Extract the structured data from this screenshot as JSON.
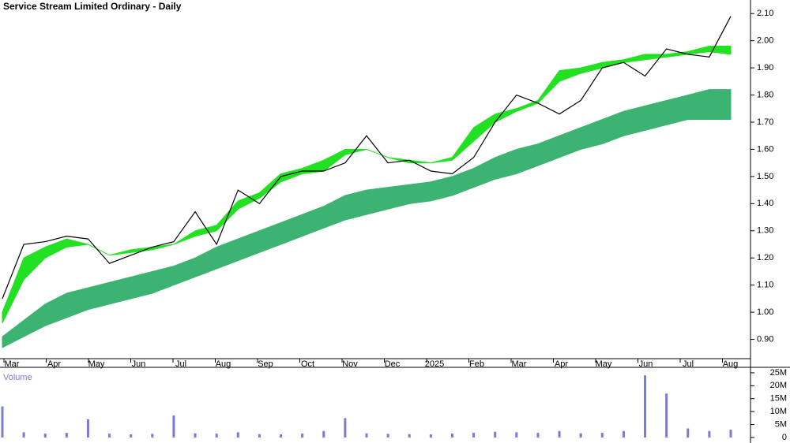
{
  "chart_data": {
    "type": "line",
    "title": "Service Stream Limited Ordinary - Daily",
    "categories": [
      "Mar",
      "Apr",
      "May",
      "Jun",
      "Jul",
      "Aug",
      "Sep",
      "Oct",
      "Nov",
      "Dec",
      "2025",
      "Feb",
      "Mar",
      "Apr",
      "May",
      "Jun",
      "Jul",
      "Aug"
    ],
    "ylim": [
      0.8,
      2.15
    ],
    "yticks": [
      {
        "value": 0.9,
        "label": "0.90"
      },
      {
        "value": 1.0,
        "label": "1.00"
      },
      {
        "value": 1.1,
        "label": "1.10"
      },
      {
        "value": 1.2,
        "label": "1.20"
      },
      {
        "value": 1.3,
        "label": "1.30"
      },
      {
        "value": 1.4,
        "label": "1.40"
      },
      {
        "value": 1.5,
        "label": "1.50"
      },
      {
        "value": 1.6,
        "label": "1.60"
      },
      {
        "value": 1.7,
        "label": "1.70"
      },
      {
        "value": 1.8,
        "label": "1.80"
      },
      {
        "value": 1.9,
        "label": "1.90"
      },
      {
        "value": 2.0,
        "label": "2.00"
      },
      {
        "value": 2.1,
        "label": "2.10"
      }
    ],
    "price": {
      "color": "#000000",
      "values": [
        1.05,
        1.25,
        1.26,
        1.28,
        1.27,
        1.18,
        1.21,
        1.24,
        1.26,
        1.37,
        1.25,
        1.45,
        1.4,
        1.5,
        1.52,
        1.52,
        1.55,
        1.65,
        1.55,
        1.56,
        1.52,
        1.51,
        1.57,
        1.7,
        1.8,
        1.77,
        1.73,
        1.78,
        1.9,
        1.92,
        1.87,
        1.97,
        1.95,
        1.94,
        2.09
      ]
    },
    "short_band": {
      "color": "#22e022",
      "upper": [
        1.0,
        1.2,
        1.24,
        1.27,
        1.25,
        1.21,
        1.23,
        1.24,
        1.25,
        1.3,
        1.32,
        1.41,
        1.44,
        1.51,
        1.53,
        1.56,
        1.6,
        1.6,
        1.57,
        1.56,
        1.55,
        1.57,
        1.68,
        1.73,
        1.75,
        1.78,
        1.89,
        1.9,
        1.92,
        1.93,
        1.95,
        1.95,
        1.96,
        1.98,
        1.98
      ],
      "lower": [
        0.96,
        1.12,
        1.2,
        1.24,
        1.25,
        1.21,
        1.22,
        1.23,
        1.25,
        1.28,
        1.3,
        1.38,
        1.42,
        1.48,
        1.51,
        1.52,
        1.58,
        1.6,
        1.57,
        1.55,
        1.55,
        1.56,
        1.63,
        1.7,
        1.74,
        1.77,
        1.85,
        1.88,
        1.9,
        1.92,
        1.93,
        1.94,
        1.95,
        1.96,
        1.95
      ]
    },
    "long_band": {
      "color": "#3cb371",
      "upper": [
        0.91,
        0.97,
        1.03,
        1.07,
        1.09,
        1.11,
        1.13,
        1.15,
        1.17,
        1.2,
        1.24,
        1.27,
        1.3,
        1.33,
        1.36,
        1.39,
        1.43,
        1.45,
        1.46,
        1.47,
        1.48,
        1.5,
        1.53,
        1.57,
        1.6,
        1.62,
        1.65,
        1.68,
        1.71,
        1.74,
        1.76,
        1.78,
        1.8,
        1.82,
        1.82
      ],
      "lower": [
        0.87,
        0.91,
        0.95,
        0.98,
        1.01,
        1.03,
        1.05,
        1.07,
        1.1,
        1.13,
        1.16,
        1.19,
        1.22,
        1.25,
        1.28,
        1.31,
        1.34,
        1.36,
        1.38,
        1.4,
        1.41,
        1.43,
        1.46,
        1.49,
        1.51,
        1.54,
        1.57,
        1.6,
        1.62,
        1.65,
        1.67,
        1.69,
        1.71,
        1.71,
        1.71
      ]
    },
    "volume": {
      "label": "Volume",
      "color": "#7b7bd0",
      "ylim": [
        0,
        26.5
      ],
      "yticks": [
        0,
        {
          "value": 5,
          "label": "5M"
        },
        {
          "value": 10,
          "label": "10M"
        },
        {
          "value": 15,
          "label": "15M"
        },
        {
          "value": 20,
          "label": "20M"
        },
        {
          "value": 25,
          "label": "25M"
        }
      ],
      "values": [
        12,
        2,
        1.5,
        1.8,
        7,
        1.5,
        1.2,
        1.4,
        8.5,
        1.6,
        1.5,
        2,
        1.3,
        1.2,
        1.5,
        2.5,
        7.5,
        1.6,
        1.4,
        1.3,
        1.2,
        1.5,
        1.8,
        2.2,
        2,
        1.8,
        2.5,
        1.6,
        1.8,
        2.5,
        24,
        17,
        3.5,
        2.5,
        3
      ]
    }
  }
}
